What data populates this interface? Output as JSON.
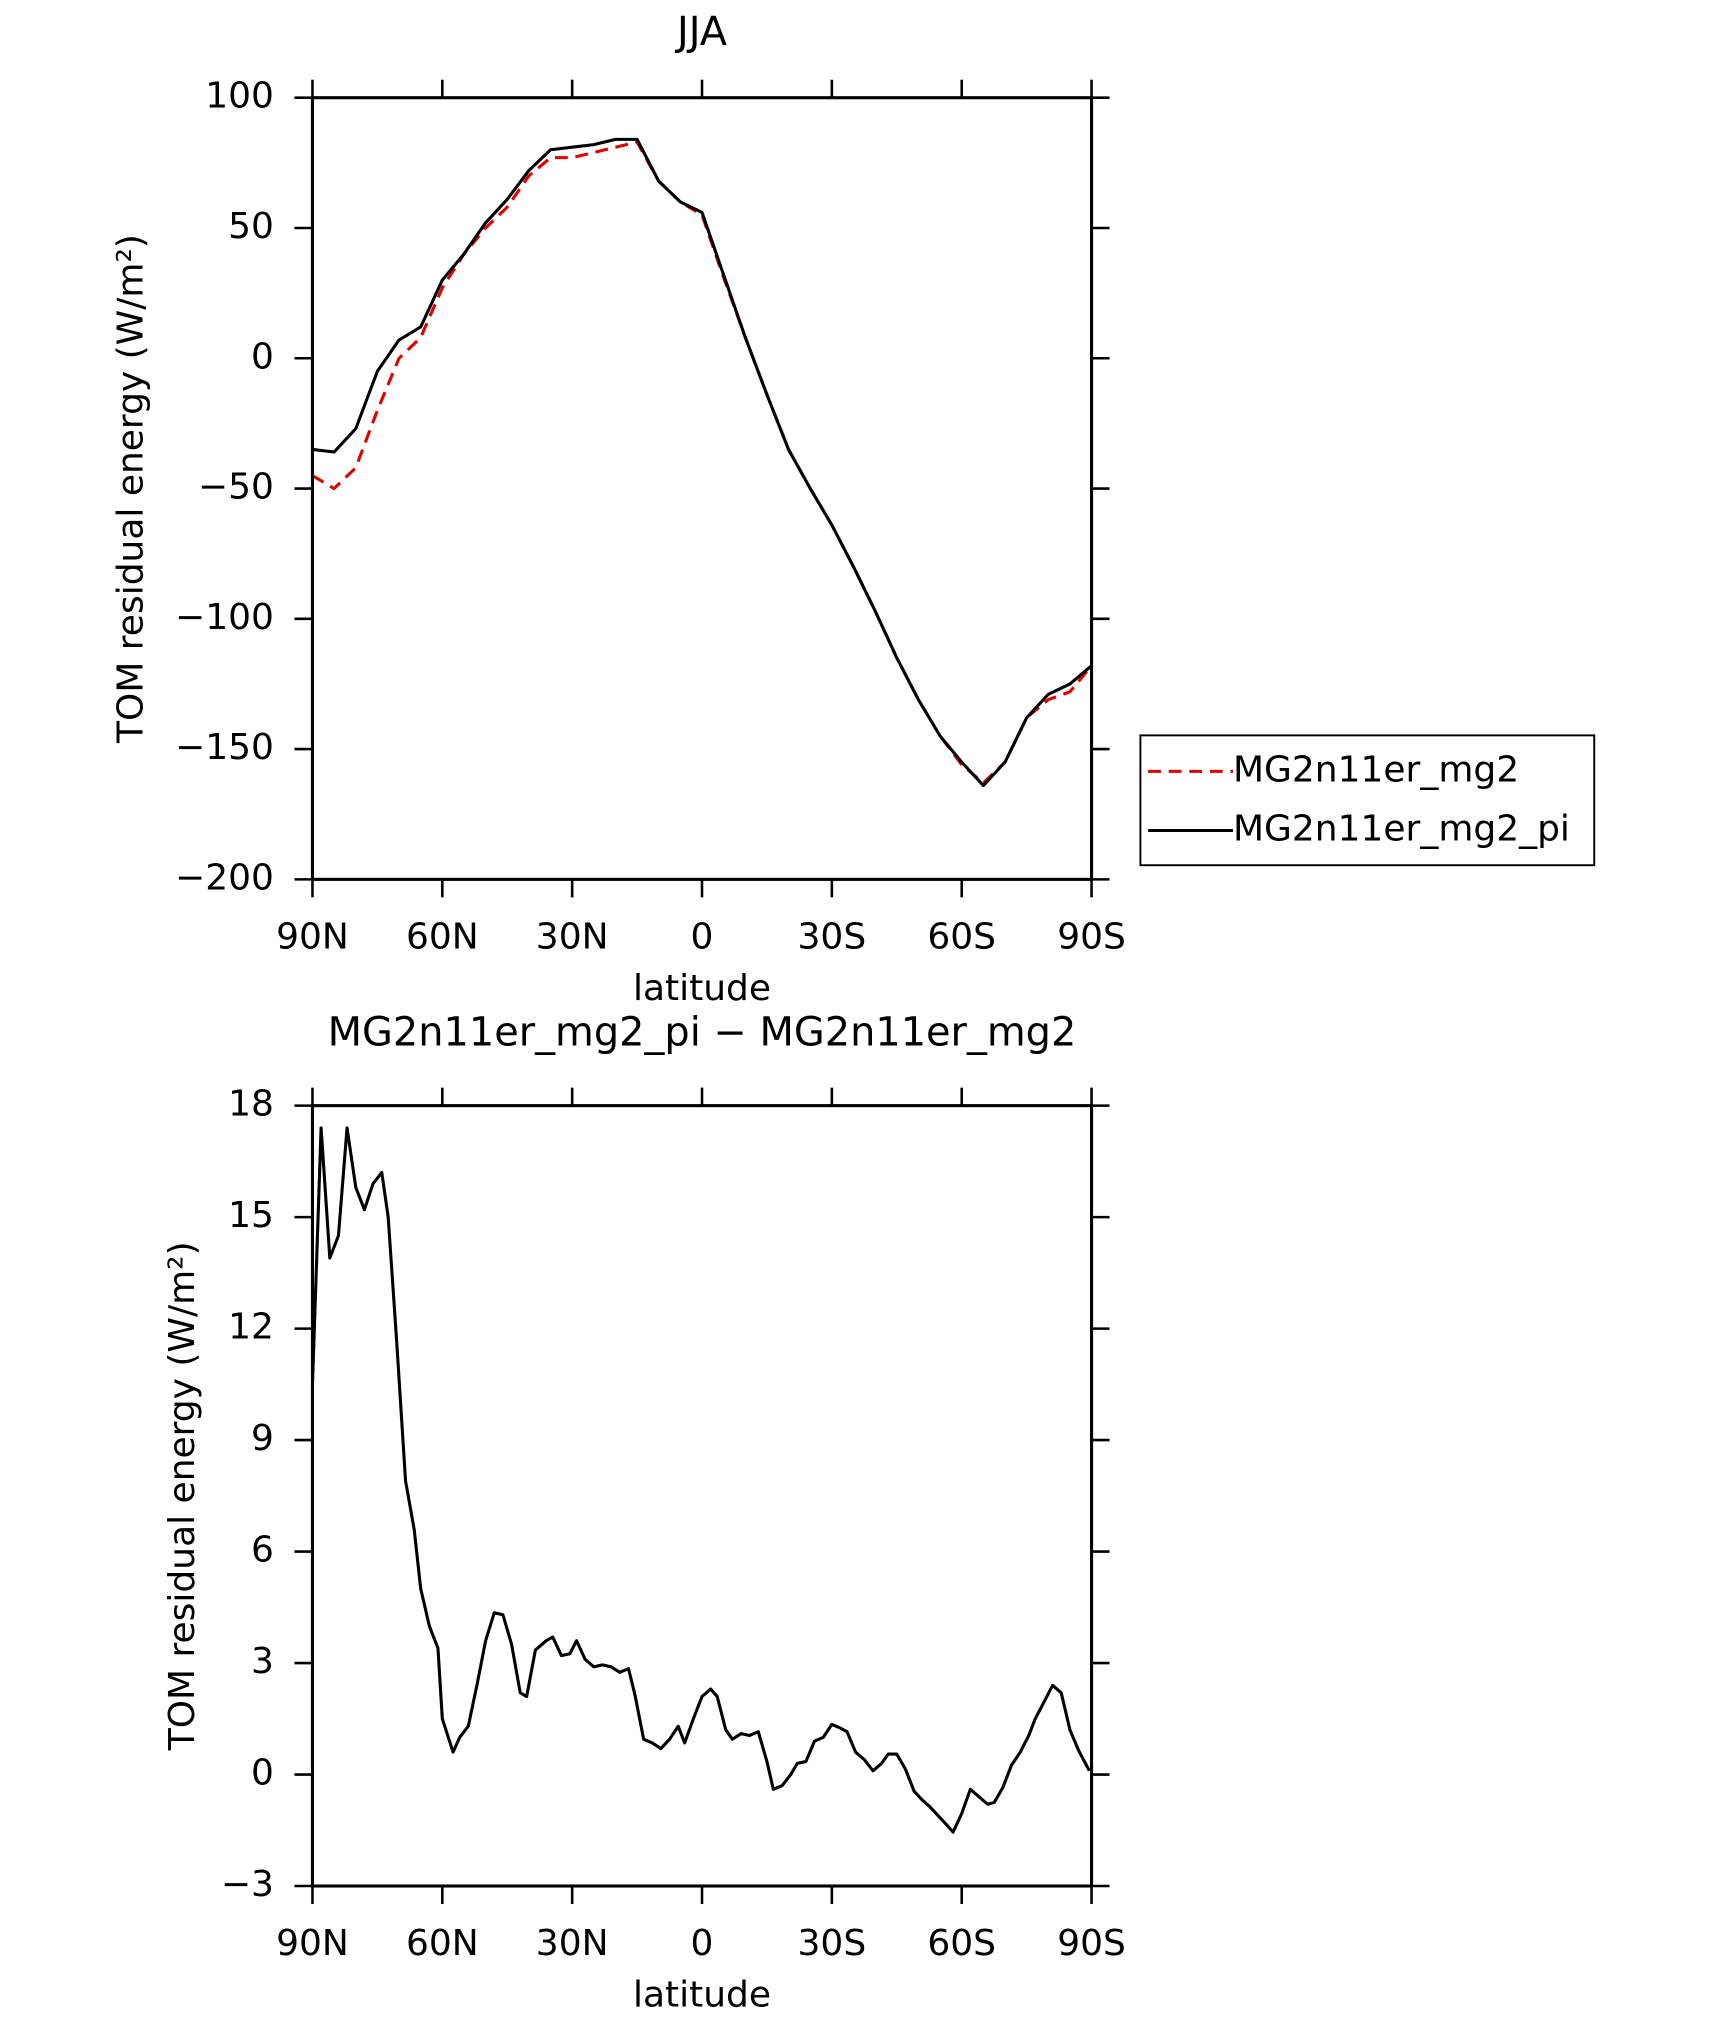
{
  "chart_data": [
    {
      "type": "line",
      "title": "JJA",
      "xlabel": "latitude",
      "ylabel": "TOM residual energy (W/m²)",
      "x": [
        90,
        85,
        80,
        75,
        70,
        65,
        60,
        55,
        50,
        45,
        40,
        35,
        30,
        25,
        20,
        15,
        10,
        5,
        0,
        -5,
        -10,
        -15,
        -20,
        -25,
        -30,
        -35,
        -40,
        -45,
        -50,
        -55,
        -60,
        -65,
        -70,
        -75,
        -80,
        -85,
        -90
      ],
      "series": [
        {
          "name": "MG2n11er_mg2",
          "color": "#e00000",
          "dash": true,
          "values": [
            -45,
            -50,
            -42,
            -20,
            0,
            8,
            27,
            40,
            50,
            58,
            70,
            77,
            77,
            79,
            81,
            83,
            68,
            60,
            55,
            31,
            8,
            -14,
            -35,
            -50,
            -64,
            -80,
            -97,
            -115,
            -131,
            -145,
            -156,
            -163,
            -155,
            -138,
            -131,
            -128,
            -118
          ]
        },
        {
          "name": "MG2n11er_mg2_pi",
          "color": "#000000",
          "dash": false,
          "values": [
            -35,
            -36,
            -27,
            -5,
            7,
            12,
            30,
            40,
            52,
            61,
            72,
            80,
            81,
            82,
            84,
            84,
            68,
            60,
            56,
            32,
            8,
            -14,
            -35,
            -50,
            -64,
            -80,
            -97,
            -115,
            -131,
            -145,
            -155,
            -164,
            -155,
            -138,
            -129,
            -125,
            -118
          ]
        }
      ],
      "xlim": [
        90,
        -90
      ],
      "xticks": [
        {
          "value": 90,
          "label": "90N"
        },
        {
          "value": 60,
          "label": "60N"
        },
        {
          "value": 30,
          "label": "30N"
        },
        0,
        {
          "value": -30,
          "label": "30S"
        },
        {
          "value": -60,
          "label": "60S"
        },
        {
          "value": -90,
          "label": "90S"
        }
      ],
      "ylim": [
        -200,
        100
      ],
      "yticks": [
        {
          "value": -200,
          "label": "−200"
        },
        {
          "value": -150,
          "label": "−150"
        },
        {
          "value": -100,
          "label": "−100"
        },
        {
          "value": -50,
          "label": "−50"
        },
        0,
        50,
        100
      ],
      "legend": "right"
    },
    {
      "type": "line",
      "title": "MG2n11er_mg2_pi − MG2n11er_mg2",
      "xlabel": "latitude",
      "ylabel": "TOM residual energy (W/m²)",
      "x": [
        90,
        88,
        86,
        84,
        82,
        80,
        78,
        76,
        74,
        72.5,
        70.5,
        68.5,
        66.5,
        65,
        63,
        61,
        60,
        57.5,
        56,
        54,
        52,
        50,
        48,
        46,
        44,
        42,
        40.5,
        38.5,
        36,
        34.5,
        32.5,
        30.5,
        29,
        27,
        25,
        23,
        21,
        19,
        17,
        15.5,
        13.5,
        11.5,
        9.5,
        7.5,
        5.5,
        4,
        2,
        0,
        -2,
        -3.5,
        -5.5,
        -7,
        -9,
        -11,
        -13,
        -15,
        -16.5,
        -18.5,
        -20.5,
        -22,
        -24,
        -26,
        -28,
        -30,
        -32,
        -33.5,
        -35.5,
        -37.5,
        -39.5,
        -41.5,
        -43,
        -45,
        -47,
        -49,
        -51,
        -52.5,
        -54.5,
        -56.5,
        -58,
        -60,
        -62,
        -64,
        -66,
        -67.5,
        -69.5,
        -71.5,
        -73.5,
        -75.5,
        -77,
        -79,
        -81,
        -83,
        -85,
        -87,
        -89.5
      ],
      "series": [
        {
          "color": "#000000",
          "dash": false,
          "values": [
            10.5,
            17.4,
            13.9,
            14.5,
            17.4,
            15.8,
            15.2,
            15.9,
            16.2,
            15,
            11.6,
            7.9,
            6.6,
            5,
            4,
            3.4,
            1.5,
            0.6,
            1,
            1.3,
            2.4,
            3.6,
            4.35,
            4.3,
            3.5,
            2.2,
            2.1,
            3.35,
            3.6,
            3.7,
            3.2,
            3.25,
            3.6,
            3.1,
            2.9,
            2.95,
            2.9,
            2.75,
            2.85,
            2.15,
            0.95,
            0.85,
            0.7,
            0.95,
            1.3,
            0.85,
            1.5,
            2.1,
            2.3,
            2.1,
            1.2,
            0.95,
            1.1,
            1.05,
            1.15,
            0.35,
            -0.4,
            -0.3,
            0,
            0.3,
            0.35,
            0.9,
            1,
            1.35,
            1.25,
            1.15,
            0.6,
            0.4,
            0.1,
            0.3,
            0.55,
            0.55,
            0.15,
            -0.45,
            -0.7,
            -0.85,
            -1.1,
            -1.35,
            -1.55,
            -1.05,
            -0.4,
            -0.6,
            -0.8,
            -0.75,
            -0.35,
            0.25,
            0.6,
            1.05,
            1.5,
            1.95,
            2.4,
            2.2,
            1.2,
            0.65,
            0.1
          ]
        }
      ],
      "xlim": [
        90,
        -90
      ],
      "xticks": [
        {
          "value": 90,
          "label": "90N"
        },
        {
          "value": 60,
          "label": "60N"
        },
        {
          "value": 30,
          "label": "30N"
        },
        0,
        {
          "value": -30,
          "label": "30S"
        },
        {
          "value": -60,
          "label": "60S"
        },
        {
          "value": -90,
          "label": "90S"
        }
      ],
      "ylim": [
        -3,
        18
      ],
      "yticks": [
        {
          "value": -3,
          "label": "−3"
        },
        0,
        3,
        6,
        9,
        12,
        15,
        18
      ]
    }
  ]
}
